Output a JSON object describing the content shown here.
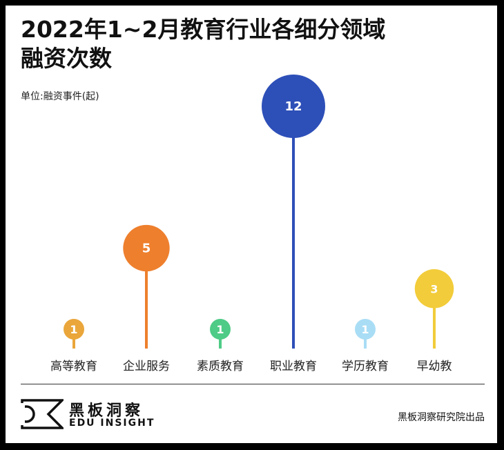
{
  "title_line1": "2022年1~2月教育行业各细分领域",
  "title_line2": "融资次数",
  "unit_label": "单位:融资事件(起)",
  "brand": {
    "name_cn": "黑板洞察",
    "name_en": "EDU INSIGHT"
  },
  "producer": "黑板洞察研究院出品",
  "chart_data": {
    "type": "lollipop",
    "categories": [
      "高等教育",
      "企业服务",
      "素质教育",
      "职业教育",
      "学历教育",
      "早幼教"
    ],
    "values": [
      1,
      5,
      1,
      12,
      1,
      3
    ],
    "colors": [
      "#EAA63A",
      "#EE7F2D",
      "#4ECB86",
      "#2D4FB8",
      "#A9DDF5",
      "#F2CC3A"
    ],
    "unit": "单位:融资事件(起)"
  }
}
